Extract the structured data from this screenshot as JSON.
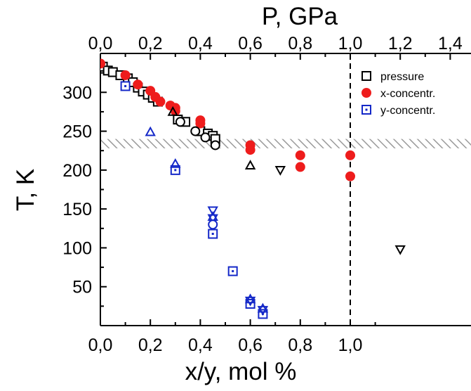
{
  "chart_data": {
    "type": "scatter",
    "title": "",
    "xlabel": "x/y, mol %",
    "ylabel": "T, K",
    "top_xlabel": "P, GPa",
    "xlim": [
      0.0,
      1.45
    ],
    "ylim": [
      0,
      350
    ],
    "top_xlim": [
      0.0,
      1.45
    ],
    "x_ticks": [
      "0,0",
      "0,2",
      "0,4",
      "0,6",
      "0,8",
      "1,0"
    ],
    "x_tick_values": [
      0.0,
      0.2,
      0.4,
      0.6,
      0.8,
      1.0
    ],
    "top_x_ticks": [
      "0,0",
      "0,2",
      "0,4",
      "0,6",
      "0,8",
      "1,0",
      "1,2",
      "1,4"
    ],
    "top_x_tick_values": [
      0.0,
      0.2,
      0.4,
      0.6,
      0.8,
      1.0,
      1.2,
      1.4
    ],
    "y_ticks": [
      "50",
      "100",
      "150",
      "200",
      "250",
      "300"
    ],
    "y_tick_values": [
      50,
      100,
      150,
      200,
      250,
      300
    ],
    "grid": false,
    "legend_position": "top-right",
    "hatched_band": [
      228,
      240
    ],
    "vertical_dashed_line_x": 1.0,
    "series": [
      {
        "name": "pressure",
        "marker": "open-square",
        "color": "#000000",
        "points": [
          [
            0.01,
            333
          ],
          [
            0.03,
            328
          ],
          [
            0.05,
            326
          ],
          [
            0.08,
            322
          ],
          [
            0.11,
            318
          ],
          [
            0.13,
            313
          ],
          [
            0.15,
            306
          ],
          [
            0.17,
            301
          ],
          [
            0.19,
            297
          ],
          [
            0.21,
            293
          ],
          [
            0.23,
            288
          ],
          [
            0.31,
            265
          ],
          [
            0.34,
            262
          ],
          [
            0.4,
            250
          ],
          [
            0.43,
            247
          ],
          [
            0.45,
            244
          ],
          [
            0.46,
            240
          ]
        ]
      },
      {
        "name": "x-concentr.",
        "marker": "filled-circle",
        "color": "#ee1c1c",
        "points": [
          [
            0.0,
            337
          ],
          [
            0.1,
            322
          ],
          [
            0.15,
            310
          ],
          [
            0.2,
            302
          ],
          [
            0.22,
            294
          ],
          [
            0.24,
            288
          ],
          [
            0.28,
            283
          ],
          [
            0.3,
            280
          ],
          [
            0.3,
            276
          ],
          [
            0.4,
            264
          ],
          [
            0.4,
            260
          ],
          [
            0.6,
            232
          ],
          [
            0.6,
            226
          ],
          [
            0.8,
            219
          ],
          [
            0.8,
            204
          ],
          [
            1.0,
            219
          ],
          [
            1.0,
            192
          ]
        ]
      },
      {
        "name": "y-concentr.",
        "marker": "open-square",
        "color": "#1428c8",
        "points": [
          [
            0.1,
            308
          ],
          [
            0.3,
            200
          ],
          [
            0.45,
            118
          ],
          [
            0.53,
            70
          ],
          [
            0.6,
            28
          ],
          [
            0.65,
            15
          ]
        ]
      },
      {
        "name": "",
        "marker": "open-circle",
        "color": "#000000",
        "points": [
          [
            0.32,
            262
          ],
          [
            0.38,
            250
          ],
          [
            0.42,
            242
          ],
          [
            0.46,
            232
          ]
        ]
      },
      {
        "name": "",
        "marker": "open-triangle-up",
        "color": "#000000",
        "points": [
          [
            0.29,
            275
          ],
          [
            0.6,
            206
          ]
        ]
      },
      {
        "name": "",
        "marker": "open-triangle-down",
        "color": "#000000",
        "points": [
          [
            0.72,
            200
          ],
          [
            1.2,
            98
          ]
        ]
      },
      {
        "name": "",
        "marker": "open-triangle-up",
        "color": "#1428c8",
        "points": [
          [
            0.2,
            249
          ],
          [
            0.3,
            208
          ],
          [
            0.45,
            140
          ],
          [
            0.6,
            34
          ],
          [
            0.65,
            22
          ]
        ]
      },
      {
        "name": "",
        "marker": "open-triangle-down",
        "color": "#1428c8",
        "points": [
          [
            0.45,
            148
          ],
          [
            0.45,
            138
          ],
          [
            0.6,
            32
          ],
          [
            0.65,
            20
          ]
        ]
      },
      {
        "name": "",
        "marker": "open-circle",
        "color": "#1428c8",
        "points": [
          [
            0.45,
            130
          ]
        ]
      }
    ],
    "legend": [
      {
        "label": "pressure",
        "marker": "open-square",
        "color": "#000000"
      },
      {
        "label": "x-concentr.",
        "marker": "filled-circle",
        "color": "#ee1c1c"
      },
      {
        "label": "y-concentr.",
        "marker": "open-square",
        "color": "#1428c8"
      }
    ]
  }
}
